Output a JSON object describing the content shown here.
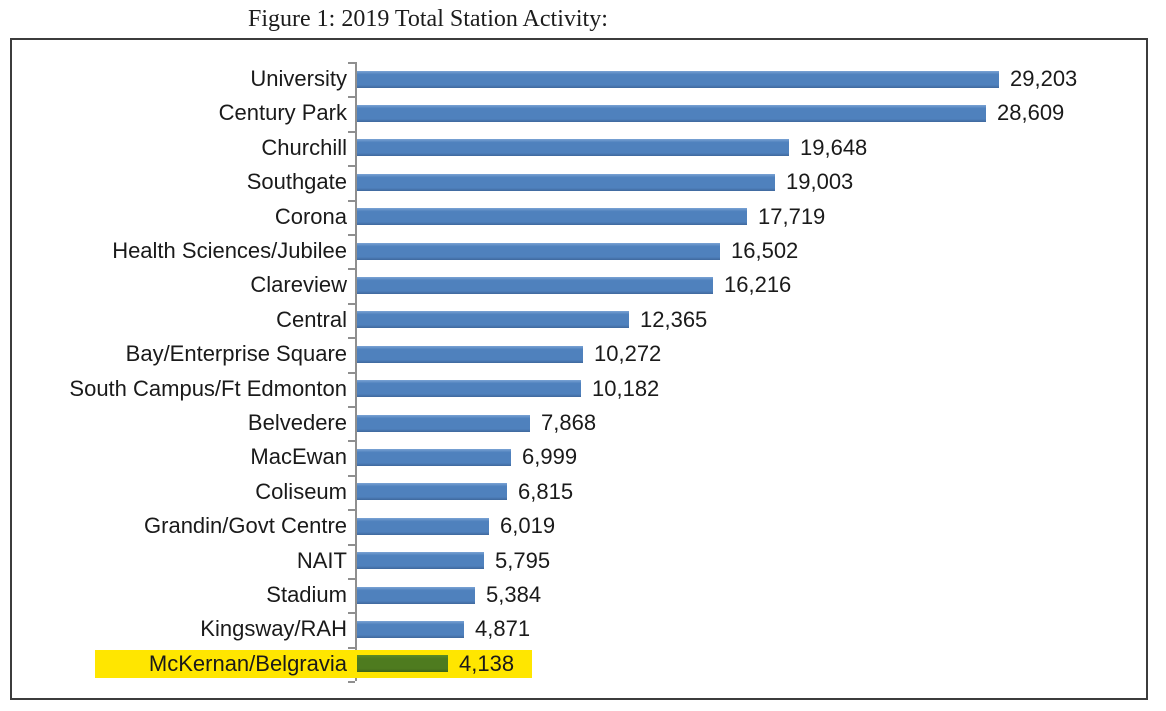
{
  "figure": {
    "caption": "Figure 1: 2019 Total Station Activity:"
  },
  "chart_data": {
    "type": "bar",
    "orientation": "horizontal",
    "title": "Figure 1: 2019 Total Station Activity:",
    "categories": [
      "University",
      "Century Park",
      "Churchill",
      "Southgate",
      "Corona",
      "Health Sciences/Jubilee",
      "Clareview",
      "Central",
      "Bay/Enterprise Square",
      "South Campus/Ft Edmonton",
      "Belvedere",
      "MacEwan",
      "Coliseum",
      "Grandin/Govt Centre",
      "NAIT",
      "Stadium",
      "Kingsway/RAH",
      "McKernan/Belgravia"
    ],
    "values": [
      29203,
      28609,
      19648,
      19003,
      17719,
      16502,
      16216,
      12365,
      10272,
      10182,
      7868,
      6999,
      6815,
      6019,
      5795,
      5384,
      4871,
      4138
    ],
    "value_labels": [
      "29,203",
      "28,609",
      "19,648",
      "19,003",
      "17,719",
      "16,502",
      "16,216",
      "12,365",
      "10,272",
      "10,182",
      "7,868",
      "6,999",
      "6,815",
      "6,019",
      "5,795",
      "5,384",
      "4,871",
      "4,138"
    ],
    "xlabel": "",
    "ylabel": "",
    "xlim": [
      0,
      30000
    ],
    "grid": false,
    "legend": false,
    "data_labels": true,
    "highlight": {
      "category": "McKernan/Belgravia",
      "value": 4138,
      "bar_color": "#4e7b1f",
      "band_color": "#ffe600"
    },
    "colors": {
      "bar": "#4f81bd",
      "highlight_bar": "#4e7b1f",
      "highlight_band": "#ffe600",
      "axis": "#8f8f8f",
      "frame_border": "#3c3c3c",
      "text": "#1a1a1a"
    }
  }
}
